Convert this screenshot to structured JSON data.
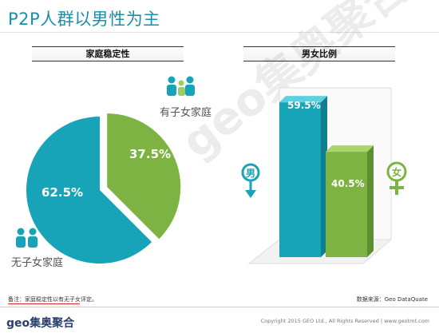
{
  "page": {
    "title": "P2P人群以男性为主",
    "watermark": "geo集奥聚合",
    "note": "备注：家庭稳定性以有无子女评定。",
    "source": "数据来源：Geo DataQuate",
    "footer_logo": "geo集奥聚合",
    "copyright": "Copyright 2015 GEO Ltd., All Rights Reserved  |  www.geotmt.com"
  },
  "colors": {
    "teal": "#17a3b8",
    "green": "#7cb342",
    "title": "#1b8fa8"
  },
  "icons": {
    "family_with_kids": "family-with-child-icon",
    "family_without_kids": "couple-icon",
    "male": "male-symbol-icon",
    "female": "female-symbol-icon"
  },
  "chart_data": [
    {
      "type": "pie",
      "title": "家庭稳定性",
      "categories": [
        "无子女家庭",
        "有子女家庭"
      ],
      "values": [
        62.5,
        37.5
      ],
      "value_labels": [
        "62.5%",
        "37.5%"
      ],
      "colors": [
        "#17a3b8",
        "#7cb342"
      ],
      "exploded": "有子女家庭"
    },
    {
      "type": "bar",
      "title": "男女比例",
      "categories": [
        "男",
        "女"
      ],
      "values": [
        59.5,
        40.5
      ],
      "value_labels": [
        "59.5%",
        "40.5%"
      ],
      "colors": [
        "#17a3b8",
        "#7cb342"
      ],
      "ylim": [
        0,
        66
      ],
      "style": "3d-cylinder-box"
    }
  ]
}
